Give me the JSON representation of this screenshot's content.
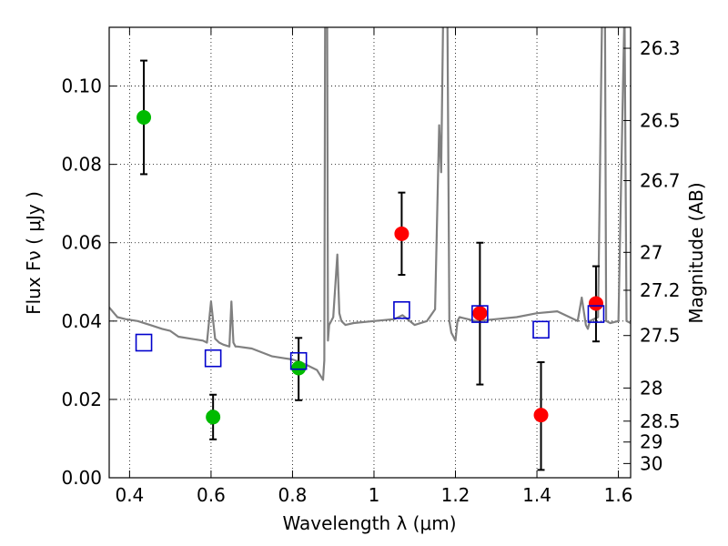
{
  "chart_data": {
    "type": "scatter",
    "title": "",
    "xlabel": "Wavelength  λ (μm)",
    "ylabel": "Flux  Fν  ( μJy )",
    "y2label": "Magnitude (AB)",
    "xlim": [
      0.35,
      1.63
    ],
    "ylim": [
      0.0,
      0.115
    ],
    "grid": true,
    "x_ticks": [
      0.4,
      0.6,
      0.8,
      1.0,
      1.2,
      1.4,
      1.6
    ],
    "x_tick_labels": [
      "0.4",
      "0.6",
      "0.8",
      "1",
      "1.2",
      "1.4",
      "1.6"
    ],
    "y_ticks": [
      0.0,
      0.02,
      0.04,
      0.06,
      0.08,
      0.1
    ],
    "y_tick_labels": [
      "0.00",
      "0.02",
      "0.04",
      "0.06",
      "0.08",
      "0.10"
    ],
    "y2_ticks": [
      26.3,
      26.5,
      26.7,
      27,
      27.2,
      27.5,
      28,
      28.5,
      29,
      30
    ],
    "y2_tick_labels": [
      "26.3",
      "26.5",
      "26.7",
      "27",
      "27.2",
      "27.5",
      "28",
      "28.5",
      "29",
      "30"
    ],
    "series": [
      {
        "marker": "circle",
        "color": "#00bb00",
        "x": [
          0.435,
          0.605,
          0.815
        ],
        "y": [
          0.092,
          0.0155,
          0.028
        ],
        "err_low": [
          0.0775,
          0.0098,
          0.0198
        ],
        "err_high": [
          0.1065,
          0.0212,
          0.0357
        ]
      },
      {
        "marker": "circle",
        "color": "#ff0000",
        "x": [
          1.068,
          1.26,
          1.41,
          1.545
        ],
        "y": [
          0.0623,
          0.042,
          0.016,
          0.0445
        ],
        "err_low": [
          0.0518,
          0.0238,
          0.002,
          0.0348
        ],
        "err_high": [
          0.0728,
          0.06,
          0.0295,
          0.054
        ]
      },
      {
        "marker": "square-open",
        "color": "#0000cc",
        "x": [
          0.435,
          0.605,
          0.815,
          1.068,
          1.26,
          1.41,
          1.545
        ],
        "y": [
          0.0345,
          0.0305,
          0.0298,
          0.0428,
          0.0418,
          0.0378,
          0.0418
        ]
      },
      {
        "marker": "line",
        "color": "#808080",
        "x": [
          0.35,
          0.37,
          0.39,
          0.42,
          0.45,
          0.48,
          0.5,
          0.52,
          0.55,
          0.58,
          0.59,
          0.6,
          0.61,
          0.62,
          0.63,
          0.645,
          0.65,
          0.655,
          0.66,
          0.665,
          0.7,
          0.75,
          0.78,
          0.8,
          0.82,
          0.84,
          0.86,
          0.875,
          0.878,
          0.88,
          0.882,
          0.883,
          0.885,
          0.887,
          0.89,
          0.9,
          0.91,
          0.915,
          0.92,
          0.93,
          0.95,
          1.0,
          1.05,
          1.07,
          1.1,
          1.13,
          1.15,
          1.16,
          1.165,
          1.17,
          1.175,
          1.18,
          1.185,
          1.19,
          1.195,
          1.2,
          1.205,
          1.21,
          1.25,
          1.3,
          1.35,
          1.4,
          1.45,
          1.5,
          1.51,
          1.52,
          1.525,
          1.53,
          1.55,
          1.56,
          1.563,
          1.565,
          1.567,
          1.57,
          1.58,
          1.6,
          1.615,
          1.62,
          1.63
        ],
        "y": [
          0.0435,
          0.041,
          0.0405,
          0.04,
          0.039,
          0.038,
          0.0375,
          0.036,
          0.0355,
          0.035,
          0.0345,
          0.045,
          0.0355,
          0.0345,
          0.034,
          0.0335,
          0.045,
          0.0345,
          0.0335,
          0.0335,
          0.033,
          0.031,
          0.0305,
          0.0302,
          0.0295,
          0.0285,
          0.0275,
          0.025,
          0.03,
          0.12,
          0.12,
          0.12,
          0.12,
          0.035,
          0.039,
          0.041,
          0.057,
          0.042,
          0.04,
          0.039,
          0.0395,
          0.04,
          0.0405,
          0.0415,
          0.039,
          0.04,
          0.043,
          0.09,
          0.078,
          0.12,
          0.12,
          0.12,
          0.04,
          0.037,
          0.036,
          0.035,
          0.04,
          0.041,
          0.04,
          0.0405,
          0.041,
          0.042,
          0.0425,
          0.04,
          0.046,
          0.039,
          0.038,
          0.04,
          0.041,
          0.12,
          0.12,
          0.12,
          0.12,
          0.04,
          0.0395,
          0.04,
          0.12,
          0.04,
          0.0395
        ]
      }
    ]
  }
}
